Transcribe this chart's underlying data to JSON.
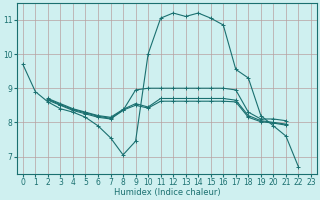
{
  "bg_color": "#cff0f0",
  "grid_color": "#b8a0a0",
  "line_color": "#1a7070",
  "xlabel": "Humidex (Indice chaleur)",
  "xlim": [
    -0.5,
    23.5
  ],
  "ylim": [
    6.5,
    11.5
  ],
  "yticks": [
    7,
    8,
    9,
    10,
    11
  ],
  "xticks": [
    0,
    1,
    2,
    3,
    4,
    5,
    6,
    7,
    8,
    9,
    10,
    11,
    12,
    13,
    14,
    15,
    16,
    17,
    18,
    19,
    20,
    21,
    22,
    23
  ],
  "series": [
    {
      "x": [
        0,
        1,
        2,
        3,
        4,
        5,
        6,
        7,
        8,
        9,
        10,
        11,
        12,
        13,
        14,
        15,
        16,
        17,
        18,
        19,
        20,
        21,
        22
      ],
      "y": [
        9.7,
        8.9,
        8.6,
        8.4,
        8.3,
        8.15,
        7.9,
        7.55,
        7.05,
        7.45,
        10.0,
        11.05,
        11.2,
        11.1,
        11.2,
        11.05,
        10.85,
        9.55,
        9.3,
        8.2,
        7.9,
        7.6,
        6.7
      ]
    },
    {
      "x": [
        2,
        3,
        4,
        5,
        6,
        7,
        8,
        9,
        10,
        11,
        12,
        13,
        14,
        15,
        16,
        17,
        18,
        19,
        20,
        21
      ],
      "y": [
        8.65,
        8.5,
        8.35,
        8.25,
        8.15,
        8.1,
        8.35,
        8.95,
        9.0,
        9.0,
        9.0,
        9.0,
        9.0,
        9.0,
        9.0,
        8.95,
        8.3,
        8.1,
        8.1,
        8.05
      ]
    },
    {
      "x": [
        2,
        3,
        4,
        5,
        6,
        7,
        8,
        9,
        10,
        11,
        12,
        13,
        14,
        15,
        16,
        17,
        18,
        19,
        20,
        21
      ],
      "y": [
        8.7,
        8.55,
        8.4,
        8.3,
        8.2,
        8.15,
        8.38,
        8.55,
        8.45,
        8.7,
        8.7,
        8.7,
        8.7,
        8.7,
        8.7,
        8.65,
        8.2,
        8.05,
        8.0,
        7.95
      ]
    },
    {
      "x": [
        2,
        3,
        4,
        5,
        6,
        7,
        8,
        9,
        10,
        11,
        12,
        13,
        14,
        15,
        16,
        17,
        18,
        19,
        20,
        21
      ],
      "y": [
        8.68,
        8.52,
        8.38,
        8.28,
        8.18,
        8.12,
        8.36,
        8.5,
        8.42,
        8.62,
        8.62,
        8.62,
        8.62,
        8.62,
        8.62,
        8.6,
        8.15,
        8.02,
        7.98,
        7.92
      ]
    }
  ]
}
